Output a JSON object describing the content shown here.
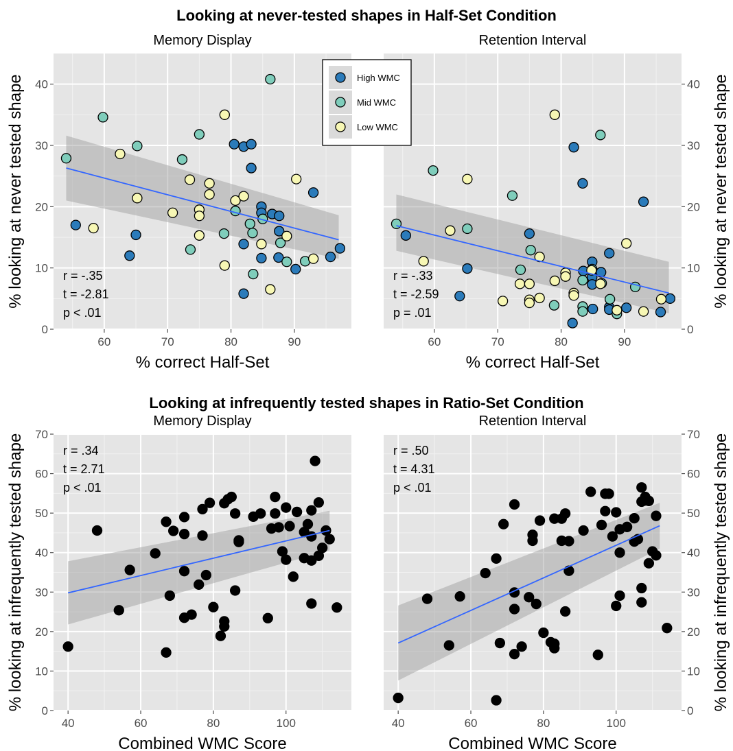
{
  "figure": {
    "top_title": "Looking at never-tested shapes in Half-Set  Condition",
    "bottom_title": "Looking at infrequently tested shapes in Ratio-Set Condition"
  },
  "legend": {
    "placement": "top-center",
    "entries": [
      {
        "label": "High WMC",
        "color": "#2b7bba"
      },
      {
        "label": "Mid WMC",
        "color": "#7fcdbb"
      },
      {
        "label": "Low WMC",
        "color": "#f7f7b4"
      }
    ]
  },
  "colors": {
    "panel_bg": "#e5e5e5",
    "grid": "#ffffff",
    "fit_line": "#3366ff",
    "ribbon": "#999999",
    "bw_point": "#000000"
  },
  "chart_data": [
    {
      "type": "scatter",
      "title": "Memory Display",
      "xlabel": "% correct Half-Set",
      "ylabel": "% looking at never tested shape",
      "xlim": [
        52,
        99
      ],
      "ylim": [
        0,
        45
      ],
      "xticks": [
        60,
        70,
        80,
        90
      ],
      "yticks": [
        0,
        10,
        20,
        30,
        40
      ],
      "stats": [
        "r = -.35",
        "t = -2.81",
        "p < .01"
      ],
      "fit": {
        "x": [
          54,
          97
        ],
        "y": [
          26.3,
          14.6
        ],
        "lower": [
          21.0,
          11.5
        ],
        "upper": [
          31.6,
          18.6
        ]
      },
      "series": [
        {
          "name": "High WMC",
          "color": "#2b7bba",
          "points": [
            [
              55.5,
              17
            ],
            [
              65,
              15.4
            ],
            [
              64,
              12
            ],
            [
              80.5,
              30.2
            ],
            [
              82,
              29.8
            ],
            [
              83.2,
              30.2
            ],
            [
              83.2,
              26.3
            ],
            [
              84.8,
              20
            ],
            [
              84.8,
              19
            ],
            [
              86.5,
              18.8
            ],
            [
              87.6,
              18.5
            ],
            [
              87.6,
              16
            ],
            [
              82,
              13.9
            ],
            [
              84.8,
              11.6
            ],
            [
              87.5,
              11.7
            ],
            [
              90.2,
              9.8
            ],
            [
              93,
              22.3
            ],
            [
              95.7,
              11.8
            ],
            [
              97.2,
              13.2
            ],
            [
              82,
              5.8
            ]
          ]
        },
        {
          "name": "Mid WMC",
          "color": "#7fcdbb",
          "points": [
            [
              54,
              27.9
            ],
            [
              59.8,
              34.6
            ],
            [
              65.2,
              29.9
            ],
            [
              72.3,
              27.7
            ],
            [
              75,
              31.8
            ],
            [
              83.4,
              15.7
            ],
            [
              83,
              17.2
            ],
            [
              80.7,
              19.3
            ],
            [
              78.9,
              15.6
            ],
            [
              73.6,
              13
            ],
            [
              86.2,
              40.8
            ],
            [
              85,
              18
            ],
            [
              87.8,
              14.1
            ],
            [
              88.8,
              11
            ],
            [
              91.7,
              11.1
            ],
            [
              83.5,
              9
            ]
          ]
        },
        {
          "name": "Low WMC",
          "color": "#f7f7b4",
          "points": [
            [
              58.3,
              16.5
            ],
            [
              62.5,
              28.6
            ],
            [
              65.2,
              21.4
            ],
            [
              70.8,
              19
            ],
            [
              73.5,
              24.4
            ],
            [
              75,
              19.5
            ],
            [
              75,
              18.5
            ],
            [
              75,
              15.3
            ],
            [
              76.6,
              23.8
            ],
            [
              76.6,
              22
            ],
            [
              79,
              35
            ],
            [
              79,
              10.4
            ],
            [
              80.7,
              21
            ],
            [
              82,
              21.7
            ],
            [
              84.8,
              13.9
            ],
            [
              86.2,
              6.5
            ],
            [
              88.8,
              15.2
            ],
            [
              90.3,
              24.5
            ],
            [
              93,
              11.5
            ]
          ]
        }
      ]
    },
    {
      "type": "scatter",
      "title": "Retention Interval",
      "xlabel": "% correct Half-Set",
      "ylabel": "% looking at never tested shape",
      "xlim": [
        52,
        99
      ],
      "ylim": [
        0,
        45
      ],
      "xticks": [
        60,
        70,
        80,
        90
      ],
      "yticks": [
        0,
        10,
        20,
        30,
        40
      ],
      "stats": [
        "r = -.33",
        "t = -2.59",
        "p = .01"
      ],
      "fit": {
        "x": [
          54,
          97
        ],
        "y": [
          16.9,
          5.9
        ],
        "lower": [
          12.8,
          2.6
        ],
        "upper": [
          22.0,
          11.0
        ]
      },
      "series": [
        {
          "name": "High WMC",
          "color": "#2b7bba",
          "points": [
            [
              55.5,
              15.3
            ],
            [
              64,
              5.4
            ],
            [
              65.2,
              9.9
            ],
            [
              75,
              15.6
            ],
            [
              82,
              29.7
            ],
            [
              83.4,
              23.8
            ],
            [
              84.9,
              11
            ],
            [
              84.9,
              8.5
            ],
            [
              84.9,
              7.3
            ],
            [
              86.3,
              9.3
            ],
            [
              87.6,
              12.4
            ],
            [
              87.6,
              3.6
            ],
            [
              87.6,
              3.2
            ],
            [
              90.3,
              3.5
            ],
            [
              93,
              20.8
            ],
            [
              95.7,
              2.8
            ],
            [
              97.2,
              5
            ],
            [
              81.8,
              1
            ],
            [
              83.5,
              9.5
            ],
            [
              85,
              3.3
            ]
          ]
        },
        {
          "name": "Mid WMC",
          "color": "#7fcdbb",
          "points": [
            [
              54,
              17.2
            ],
            [
              59.8,
              25.9
            ],
            [
              65.2,
              16.4
            ],
            [
              72.3,
              21.8
            ],
            [
              73.6,
              9.7
            ],
            [
              75.2,
              12.9
            ],
            [
              78.9,
              3.9
            ],
            [
              83.4,
              8
            ],
            [
              83.4,
              3.7
            ],
            [
              83.4,
              2.9
            ],
            [
              86.2,
              31.7
            ],
            [
              87.7,
              4.9
            ],
            [
              88.8,
              2.5
            ],
            [
              91.7,
              6.9
            ],
            [
              84.9,
              9.8
            ],
            [
              86.4,
              7.5
            ]
          ]
        },
        {
          "name": "Low WMC",
          "color": "#f7f7b4",
          "points": [
            [
              58.3,
              11.1
            ],
            [
              62.5,
              16.1
            ],
            [
              65.2,
              24.5
            ],
            [
              70.8,
              4.6
            ],
            [
              73.5,
              7.4
            ],
            [
              75,
              7.4
            ],
            [
              75,
              4.8
            ],
            [
              75,
              4.3
            ],
            [
              76.6,
              11.8
            ],
            [
              76.6,
              5.1
            ],
            [
              79,
              35
            ],
            [
              79,
              7.9
            ],
            [
              80.7,
              9.2
            ],
            [
              80.7,
              8.6
            ],
            [
              82,
              5.9
            ],
            [
              82,
              5.5
            ],
            [
              84.8,
              9.6
            ],
            [
              86.2,
              7.4
            ],
            [
              88.8,
              3.1
            ],
            [
              90.3,
              14
            ],
            [
              93,
              2.9
            ],
            [
              95.8,
              4.9
            ]
          ]
        }
      ]
    },
    {
      "type": "scatter",
      "title": "Memory Display",
      "xlabel": "Combined WMC Score",
      "ylabel": "% looking at infrequently tested shape",
      "xlim": [
        36,
        118
      ],
      "ylim": [
        0,
        70
      ],
      "xticks": [
        40,
        60,
        80,
        100
      ],
      "yticks": [
        0,
        10,
        20,
        30,
        40,
        50,
        60,
        70
      ],
      "stats": [
        "r = .34",
        "t = 2.71",
        "p < .01"
      ],
      "fit": {
        "x": [
          40,
          112
        ],
        "y": [
          29.8,
          45.6
        ],
        "lower": [
          21.8,
          40.6
        ],
        "upper": [
          37.8,
          50.6
        ]
      },
      "series": [
        {
          "name": "",
          "color": "#000000",
          "points": [
            [
              40,
              16.2
            ],
            [
              48,
              45.6
            ],
            [
              54,
              25.4
            ],
            [
              57,
              35.6
            ],
            [
              64,
              39.8
            ],
            [
              67,
              14.7
            ],
            [
              67,
              47.8
            ],
            [
              68,
              29.1
            ],
            [
              69,
              45.5
            ],
            [
              72,
              49
            ],
            [
              72,
              44.7
            ],
            [
              72,
              35.3
            ],
            [
              72,
              23.5
            ],
            [
              74,
              24.3
            ],
            [
              76,
              31.9
            ],
            [
              77,
              44.3
            ],
            [
              77,
              51
            ],
            [
              78,
              34.3
            ],
            [
              79,
              52.6
            ],
            [
              80,
              26.2
            ],
            [
              82,
              18.9
            ],
            [
              83,
              22.6
            ],
            [
              83,
              21.3
            ],
            [
              83,
              52.5
            ],
            [
              84,
              53.5
            ],
            [
              85,
              54.1
            ],
            [
              86,
              49.9
            ],
            [
              86,
              30.4
            ],
            [
              87,
              43.1
            ],
            [
              87,
              42.7
            ],
            [
              91,
              49.1
            ],
            [
              93,
              49.9
            ],
            [
              95,
              23.4
            ],
            [
              96,
              46.1
            ],
            [
              97,
              49.9
            ],
            [
              97,
              54.1
            ],
            [
              98,
              46.4
            ],
            [
              99,
              40.3
            ],
            [
              100,
              51.4
            ],
            [
              100,
              38.2
            ],
            [
              101,
              46.7
            ],
            [
              102,
              33.9
            ],
            [
              103,
              50.3
            ],
            [
              105,
              38.6
            ],
            [
              105,
              45.2
            ],
            [
              106,
              47.2
            ],
            [
              107,
              50.7
            ],
            [
              107,
              44.1
            ],
            [
              107,
              38
            ],
            [
              108,
              63.2
            ],
            [
              109,
              39.2
            ],
            [
              109,
              52.7
            ],
            [
              110,
              41.2
            ],
            [
              111,
              45.6
            ],
            [
              112,
              43.4
            ],
            [
              114,
              26.1
            ],
            [
              107,
              27.1
            ]
          ]
        }
      ]
    },
    {
      "type": "scatter",
      "title": "Retention Interval",
      "xlabel": "Combined WMC Score",
      "ylabel": "% looking at infrequently tested shape",
      "xlim": [
        36,
        118
      ],
      "ylim": [
        0,
        70
      ],
      "xticks": [
        40,
        60,
        80,
        100
      ],
      "yticks": [
        0,
        10,
        20,
        30,
        40,
        50,
        60,
        70
      ],
      "stats": [
        "r = .50",
        "t = 4.31",
        "p < .01"
      ],
      "fit": {
        "x": [
          40,
          112
        ],
        "y": [
          17.1,
          46.8
        ],
        "lower": [
          7.6,
          41.0
        ],
        "upper": [
          26.6,
          52.6
        ]
      },
      "series": [
        {
          "name": "",
          "color": "#000000",
          "points": [
            [
              40,
              3.2
            ],
            [
              48,
              28.3
            ],
            [
              54,
              16.5
            ],
            [
              57,
              28.9
            ],
            [
              64,
              34.8
            ],
            [
              67,
              2.6
            ],
            [
              67,
              38.5
            ],
            [
              68,
              17.1
            ],
            [
              69,
              47.2
            ],
            [
              72,
              52.2
            ],
            [
              72,
              29.9
            ],
            [
              72,
              25.7
            ],
            [
              72,
              14.3
            ],
            [
              74,
              16.2
            ],
            [
              76,
              28.7
            ],
            [
              77,
              44.5
            ],
            [
              77,
              43
            ],
            [
              78,
              27
            ],
            [
              79,
              48.1
            ],
            [
              80,
              19.7
            ],
            [
              82,
              17.3
            ],
            [
              83,
              16.9
            ],
            [
              83,
              15.8
            ],
            [
              83,
              48.6
            ],
            [
              85,
              43
            ],
            [
              85,
              48.6
            ],
            [
              86,
              49.9
            ],
            [
              86,
              25.1
            ],
            [
              87,
              42.9
            ],
            [
              87,
              35.4
            ],
            [
              91,
              45.6
            ],
            [
              93,
              55.4
            ],
            [
              95,
              14.1
            ],
            [
              96,
              47
            ],
            [
              97,
              50.5
            ],
            [
              97,
              54.9
            ],
            [
              98,
              54.9
            ],
            [
              99,
              44.1
            ],
            [
              100,
              50.2
            ],
            [
              100,
              26.5
            ],
            [
              101,
              45.9
            ],
            [
              101,
              40
            ],
            [
              101,
              29.1
            ],
            [
              103,
              46.5
            ],
            [
              105,
              42.8
            ],
            [
              105,
              48.7
            ],
            [
              106,
              43.4
            ],
            [
              107,
              52.9
            ],
            [
              107,
              31
            ],
            [
              107,
              27.4
            ],
            [
              107,
              56.5
            ],
            [
              108,
              54.1
            ],
            [
              108,
              53.2
            ],
            [
              109,
              37.3
            ],
            [
              109,
              53.1
            ],
            [
              110,
              40.3
            ],
            [
              111,
              49.3
            ],
            [
              111,
              39.3
            ],
            [
              114,
              20.9
            ]
          ]
        }
      ]
    }
  ]
}
